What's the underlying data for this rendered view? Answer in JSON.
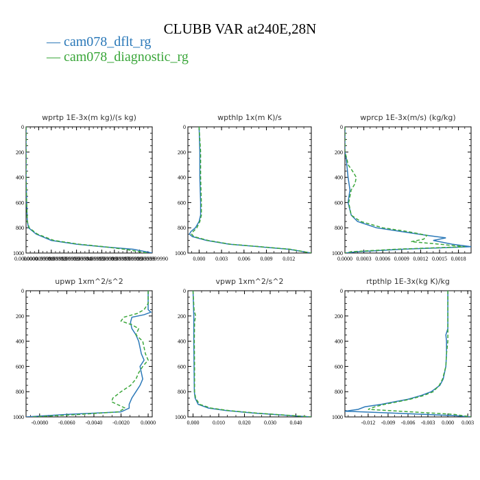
{
  "title": "CLUBB VAR at240E,28N",
  "legend": [
    {
      "label": "— cam078_dflt_rg",
      "color": "#2a78b8"
    },
    {
      "label": "— cam078_diagnostic_rg",
      "color": "#3aa63a"
    }
  ],
  "chart_data": [
    {
      "type": "line",
      "title": "wprtp   1E-3x(m kg)/(s kg)",
      "xlim": [
        0,
        0.0001
      ],
      "ylim": [
        1000,
        0
      ],
      "y_ticks": [
        0,
        200,
        400,
        600,
        800,
        1000
      ],
      "x_ticks": [
        0,
        1e-05,
        2e-05,
        3e-05,
        4e-05,
        5e-05,
        6e-05,
        7e-05,
        8e-05,
        9e-05,
        0.0001
      ],
      "x_tick_labels": [
        "0.0000000",
        "0.0000099999",
        "0.0000199999",
        "0.0000299999",
        "0.0000399999",
        "0.0000499999",
        "0.0000599999",
        "0.0000699999",
        "0.0000799999",
        "0.0000899999",
        "0.0000999990"
      ],
      "series": [
        {
          "color": "#2a78b8",
          "dash": "",
          "y": [
            0,
            200,
            400,
            600,
            750,
            800,
            850,
            900,
            930,
            950,
            970,
            980,
            990,
            1000
          ],
          "x": [
            0,
            0,
            0,
            5e-07,
            1e-06,
            2e-06,
            8e-06,
            2e-05,
            4e-05,
            6e-05,
            8.5e-05,
            9e-05,
            9.5e-05,
            0.0001
          ]
        },
        {
          "color": "#3aa63a",
          "dash": "5,3",
          "y": [
            0,
            200,
            400,
            600,
            750,
            800,
            850,
            900,
            930,
            950,
            970,
            980,
            990,
            1000
          ],
          "x": [
            0,
            0,
            0,
            4e-07,
            1e-06,
            2.5e-06,
            9e-06,
            2.2e-05,
            4.2e-05,
            6.2e-05,
            7.8e-05,
            8.4e-05,
            9e-05,
            9.6e-05
          ]
        }
      ]
    },
    {
      "type": "line",
      "title": "wpthlp   1x(m K)/s",
      "xlim": [
        -0.0015,
        0.015
      ],
      "ylim": [
        1000,
        0
      ],
      "y_ticks": [
        0,
        200,
        400,
        600,
        800,
        1000
      ],
      "x_ticks": [
        0,
        0.003,
        0.006,
        0.009,
        0.012
      ],
      "x_tick_labels": [
        "0.000",
        "0.003",
        "0.006",
        "0.009",
        "0.012"
      ],
      "series": [
        {
          "color": "#2a78b8",
          "dash": "",
          "y": [
            0,
            200,
            400,
            600,
            700,
            750,
            800,
            830,
            850,
            870,
            900,
            930,
            950,
            970,
            1000
          ],
          "x": [
            0,
            0.0001,
            0.0001,
            0.0002,
            0.0002,
            0,
            -0.0005,
            -0.0011,
            -0.0013,
            -0.0009,
            0.001,
            0.004,
            0.008,
            0.012,
            0.015
          ]
        },
        {
          "color": "#3aa63a",
          "dash": "5,3",
          "y": [
            0,
            200,
            400,
            600,
            700,
            750,
            800,
            830,
            850,
            870,
            900,
            930,
            950,
            970,
            1000
          ],
          "x": [
            0,
            0.0002,
            0.0002,
            0.0003,
            0.0003,
            0.0001,
            -0.0003,
            -0.0008,
            -0.001,
            -0.0007,
            0.0012,
            0.0042,
            0.0082,
            0.0122,
            0.015
          ]
        }
      ]
    },
    {
      "type": "line",
      "title": "wprcp   1E-3x(m/s) (kg/kg)",
      "xlim": [
        0,
        0.002
      ],
      "ylim": [
        1000,
        0
      ],
      "y_ticks": [
        0,
        200,
        400,
        600,
        800,
        1000
      ],
      "x_ticks": [
        0,
        0.0003,
        0.0006,
        0.0009,
        0.0012,
        0.0015,
        0.0018
      ],
      "x_tick_labels": [
        "0.0000",
        "0.0003",
        "0.0006",
        "0.0009",
        "0.0012",
        "0.0015",
        "0.0018"
      ],
      "series": [
        {
          "color": "#2a78b8",
          "dash": "",
          "y": [
            0,
            200,
            250,
            300,
            400,
            500,
            600,
            700,
            750,
            800,
            830,
            860,
            880,
            900,
            930,
            950,
            970,
            990,
            1000
          ],
          "x": [
            0,
            0,
            2e-05,
            3e-05,
            5e-05,
            8e-05,
            5e-05,
            0.0001,
            0.0002,
            0.0005,
            0.0009,
            0.0013,
            0.0016,
            0.0014,
            0.0017,
            0.002,
            0.0009,
            0.0002,
            0
          ]
        },
        {
          "color": "#3aa63a",
          "dash": "5,3",
          "y": [
            0,
            200,
            250,
            300,
            350,
            400,
            450,
            500,
            600,
            700,
            750,
            800,
            830,
            860,
            890,
            910,
            930,
            950,
            970,
            990,
            1000
          ],
          "x": [
            0,
            0,
            3e-05,
            5e-05,
            0.00012,
            0.00018,
            0.00016,
            0.0001,
            6e-05,
            0.0001,
            0.00025,
            0.0006,
            0.001,
            0.0013,
            0.00125,
            0.00105,
            0.0015,
            0.0019,
            0.0008,
            0.0001,
            0
          ]
        }
      ]
    },
    {
      "type": "line",
      "title": "upwp   1xm^2/s^2",
      "xlim": [
        -0.009,
        0.0003
      ],
      "ylim": [
        1000,
        0
      ],
      "y_ticks": [
        0,
        200,
        400,
        600,
        800,
        1000
      ],
      "x_ticks": [
        -0.008,
        -0.006,
        -0.004,
        -0.002,
        0
      ],
      "x_tick_labels": [
        "-0.0080",
        "-0.0060",
        "-0.0040",
        "-0.0020",
        "0.0000"
      ],
      "series": [
        {
          "color": "#2a78b8",
          "dash": "",
          "y": [
            0,
            150,
            170,
            190,
            210,
            250,
            300,
            350,
            400,
            500,
            550,
            600,
            700,
            750,
            800,
            850,
            900,
            930,
            960,
            980,
            1000
          ],
          "x": [
            0,
            0,
            0.0002,
            -0.0003,
            -0.0012,
            -0.0013,
            -0.0012,
            -0.0009,
            -0.0007,
            -0.0005,
            -0.0003,
            -0.0006,
            -0.0004,
            -0.0006,
            -0.0009,
            -0.0012,
            -0.0014,
            -0.0014,
            -0.002,
            -0.006,
            -0.009
          ]
        },
        {
          "color": "#3aa63a",
          "dash": "5,3",
          "y": [
            0,
            100,
            150,
            180,
            210,
            240,
            270,
            300,
            350,
            400,
            450,
            500,
            550,
            600,
            650,
            700,
            750,
            800,
            850,
            880,
            900,
            930,
            960,
            980,
            1000
          ],
          "x": [
            0,
            0,
            -0.0003,
            -0.0008,
            -0.0018,
            -0.002,
            -0.0012,
            -0.0007,
            -0.0009,
            -0.0004,
            -0.0003,
            -0.0002,
            0,
            -0.0004,
            -0.0007,
            -0.0009,
            -0.0013,
            -0.002,
            -0.0026,
            -0.0027,
            -0.0023,
            -0.0017,
            -0.0022,
            -0.005,
            -0.0085
          ]
        }
      ]
    },
    {
      "type": "line",
      "title": "vpwp   1xm^2/s^2",
      "xlim": [
        -0.002,
        0.046
      ],
      "ylim": [
        1000,
        0
      ],
      "y_ticks": [
        0,
        200,
        400,
        600,
        800,
        1000
      ],
      "x_ticks": [
        0,
        0.01,
        0.02,
        0.03,
        0.04
      ],
      "x_tick_labels": [
        "0.000",
        "0.010",
        "0.020",
        "0.030",
        "0.040"
      ],
      "series": [
        {
          "color": "#2a78b8",
          "dash": "",
          "y": [
            0,
            200,
            400,
            600,
            800,
            850,
            900,
            930,
            950,
            970,
            990,
            1000
          ],
          "x": [
            0,
            0.0003,
            0.0003,
            0.0004,
            0.0005,
            0.0008,
            0.002,
            0.006,
            0.013,
            0.024,
            0.038,
            0.046
          ]
        },
        {
          "color": "#3aa63a",
          "dash": "5,3",
          "y": [
            0,
            150,
            200,
            250,
            400,
            600,
            800,
            850,
            900,
            930,
            950,
            970,
            990,
            1000
          ],
          "x": [
            0,
            0.0004,
            0.001,
            0.0006,
            0.0005,
            0.0006,
            0.0006,
            0.001,
            0.0025,
            0.007,
            0.014,
            0.025,
            0.039,
            0.046
          ]
        }
      ]
    },
    {
      "type": "line",
      "title": "rtpthlp   1E-3x(kg K)/kg",
      "xlim": [
        -0.0155,
        0.0035
      ],
      "ylim": [
        1000,
        0
      ],
      "y_ticks": [
        0,
        200,
        400,
        600,
        800,
        1000
      ],
      "x_ticks": [
        -0.012,
        -0.009,
        -0.006,
        -0.003,
        0,
        0.003
      ],
      "x_tick_labels": [
        "-0.012",
        "-0.009",
        "-0.006",
        "-0.003",
        "0.000",
        "0.003"
      ],
      "series": [
        {
          "color": "#2a78b8",
          "dash": "",
          "y": [
            0,
            300,
            350,
            400,
            500,
            600,
            700,
            750,
            800,
            830,
            860,
            880,
            900,
            920,
            940,
            955,
            970,
            990,
            1000
          ],
          "x": [
            0,
            0,
            -0.0003,
            -0.0002,
            -0.0002,
            -0.0003,
            -0.0007,
            -0.0012,
            -0.0025,
            -0.004,
            -0.006,
            -0.008,
            -0.01,
            -0.0125,
            -0.0135,
            -0.0155,
            -0.008,
            0.001,
            0.0035
          ]
        },
        {
          "color": "#3aa63a",
          "dash": "5,3",
          "y": [
            0,
            300,
            400,
            500,
            600,
            700,
            750,
            800,
            830,
            860,
            880,
            900,
            920,
            940,
            960,
            980,
            1000
          ],
          "x": [
            0,
            0,
            0,
            -0.0002,
            -0.0003,
            -0.0008,
            -0.0013,
            -0.0022,
            -0.0036,
            -0.0057,
            -0.0075,
            -0.0095,
            -0.011,
            -0.012,
            -0.0055,
            0.001,
            0.0035
          ]
        }
      ]
    }
  ]
}
